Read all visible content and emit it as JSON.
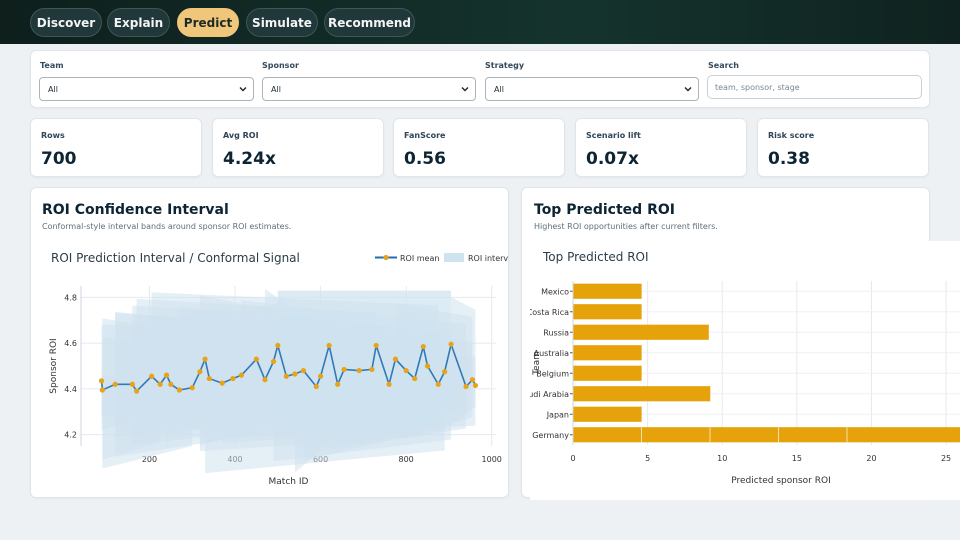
{
  "tabs": [
    {
      "label": "Discover",
      "active": false
    },
    {
      "label": "Explain",
      "active": false
    },
    {
      "label": "Predict",
      "active": true
    },
    {
      "label": "Simulate",
      "active": false
    },
    {
      "label": "Recommend",
      "active": false
    }
  ],
  "filters": {
    "team": {
      "label": "Team",
      "value": "All"
    },
    "sponsor": {
      "label": "Sponsor",
      "value": "All"
    },
    "strategy": {
      "label": "Strategy",
      "value": "All"
    },
    "search": {
      "label": "Search",
      "placeholder": "team, sponsor, stage"
    }
  },
  "kpis": [
    {
      "label": "Rows",
      "value": "700"
    },
    {
      "label": "Avg ROI",
      "value": "4.24x"
    },
    {
      "label": "FanScore",
      "value": "0.56"
    },
    {
      "label": "Scenario lift",
      "value": "0.07x"
    },
    {
      "label": "Risk score",
      "value": "0.38"
    }
  ],
  "panels": {
    "left": {
      "title": "ROI Confidence Interval",
      "subtitle": "Conformal-style interval bands around sponsor ROI estimates."
    },
    "right": {
      "title": "Top Predicted ROI",
      "subtitle": "Highest ROI opportunities after current filters."
    }
  },
  "colors": {
    "accent": "#f0c67b",
    "line": "#1f6fae",
    "marker": "#e8a317",
    "band": "#cfe2ef",
    "bar": "#e6a20a"
  },
  "chart_data": [
    {
      "type": "line",
      "title": "ROI Prediction Interval / Conformal Signal",
      "xlabel": "Match ID",
      "ylabel": "Sponsor ROI",
      "xlim": [
        40,
        1010
      ],
      "ylim": [
        4.15,
        4.85
      ],
      "xticks": [
        200,
        400,
        600,
        800,
        1000
      ],
      "yticks": [
        4.2,
        4.4,
        4.6,
        4.8
      ],
      "legend": "top-right",
      "grid": true,
      "series": [
        {
          "name": "ROI mean",
          "points": [
            [
              88,
              4.435
            ],
            [
              90,
              4.395
            ],
            [
              120,
              4.42
            ],
            [
              160,
              4.42
            ],
            [
              170,
              4.39
            ],
            [
              205,
              4.455
            ],
            [
              225,
              4.42
            ],
            [
              240,
              4.46
            ],
            [
              250,
              4.42
            ],
            [
              270,
              4.395
            ],
            [
              300,
              4.405
            ],
            [
              318,
              4.475
            ],
            [
              330,
              4.53
            ],
            [
              340,
              4.445
            ],
            [
              370,
              4.425
            ],
            [
              395,
              4.445
            ],
            [
              415,
              4.46
            ],
            [
              450,
              4.53
            ],
            [
              470,
              4.44
            ],
            [
              490,
              4.52
            ],
            [
              500,
              4.59
            ],
            [
              520,
              4.455
            ],
            [
              540,
              4.465
            ],
            [
              560,
              4.48
            ],
            [
              590,
              4.41
            ],
            [
              600,
              4.455
            ],
            [
              620,
              4.59
            ],
            [
              640,
              4.42
            ],
            [
              655,
              4.485
            ],
            [
              690,
              4.48
            ],
            [
              720,
              4.485
            ],
            [
              730,
              4.59
            ],
            [
              760,
              4.42
            ],
            [
              775,
              4.53
            ],
            [
              800,
              4.48
            ],
            [
              820,
              4.445
            ],
            [
              840,
              4.585
            ],
            [
              850,
              4.5
            ],
            [
              875,
              4.42
            ],
            [
              890,
              4.475
            ],
            [
              905,
              4.595
            ],
            [
              940,
              4.41
            ],
            [
              955,
              4.44
            ],
            [
              962,
              4.415
            ]
          ]
        },
        {
          "name": "ROI interval"
        }
      ]
    },
    {
      "type": "bar",
      "orientation": "horizontal",
      "title": "Top Predicted ROI",
      "xlabel": "Predicted sponsor ROI",
      "ylabel": "Team",
      "xlim": [
        0,
        26
      ],
      "xticks": [
        0,
        5,
        10,
        15,
        20,
        25
      ],
      "categories": [
        "Mexico",
        "Costa Rica",
        "Russia",
        "Australia",
        "Belgium",
        "Saudi Arabia",
        "Japan",
        "Germany"
      ],
      "values": [
        4.6,
        4.6,
        9.1,
        4.6,
        4.6,
        9.2,
        4.6,
        27.5
      ]
    }
  ]
}
